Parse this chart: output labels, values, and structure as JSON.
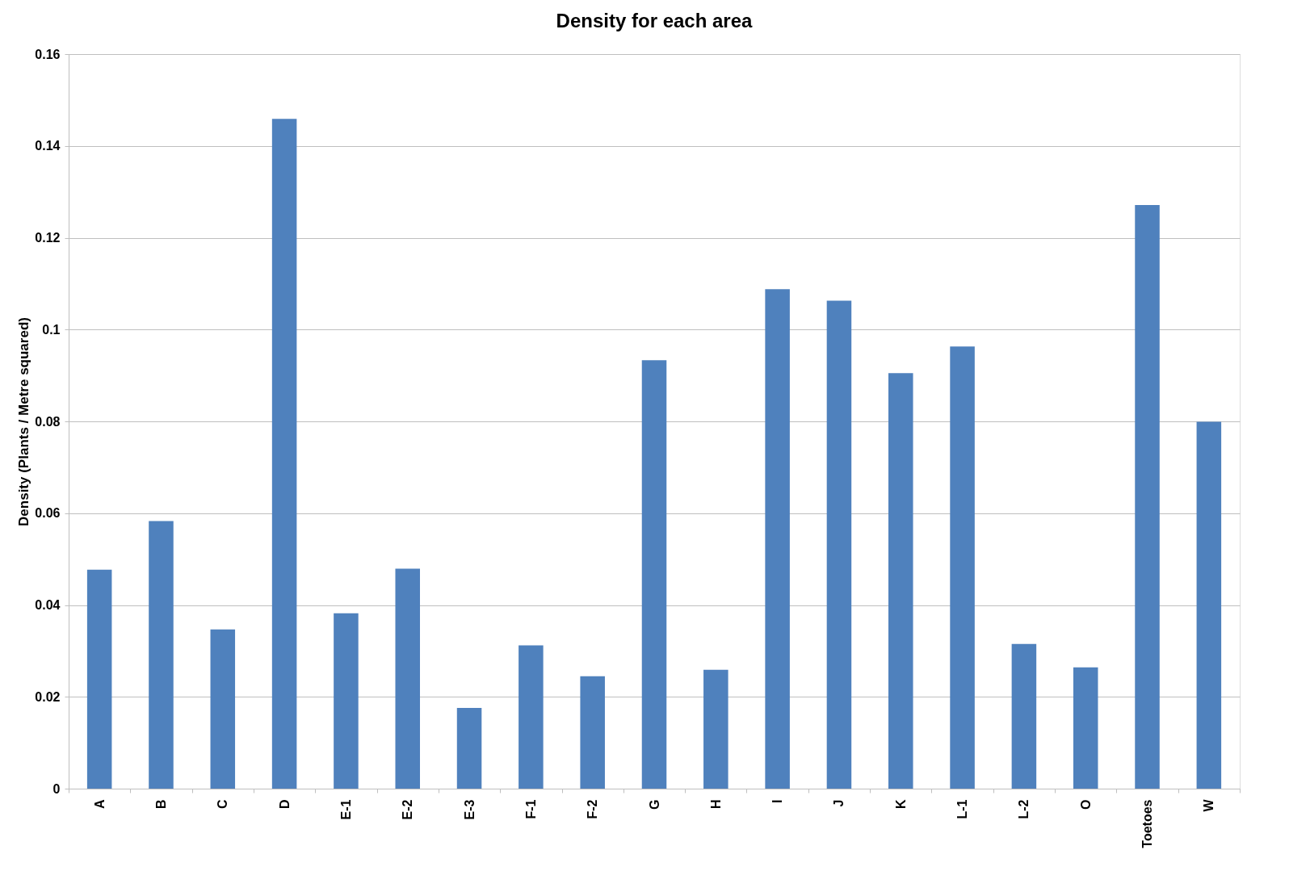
{
  "chart_data": {
    "type": "bar",
    "title": "Density for each area",
    "ylabel": "Density (Plants / Metre squared)",
    "categories": [
      "A",
      "B",
      "C",
      "D",
      "E-1",
      "E-2",
      "E-3",
      "F-1",
      "F-2",
      "G",
      "H",
      "I",
      "J",
      "K",
      "L-1",
      "L-2",
      "O",
      "Toetoes",
      "W"
    ],
    "values": [
      0.0477,
      0.0583,
      0.0347,
      0.1459,
      0.0382,
      0.0479,
      0.0176,
      0.0312,
      0.0245,
      0.0933,
      0.0259,
      0.1088,
      0.1063,
      0.0905,
      0.0963,
      0.0315,
      0.0264,
      0.1271,
      0.0799
    ],
    "color": "#4f81bd",
    "ylim": [
      0,
      0.16
    ],
    "yticks": [
      0,
      0.02,
      0.04,
      0.06,
      0.08,
      0.1,
      0.12,
      0.14,
      0.16
    ],
    "grid": "y"
  }
}
